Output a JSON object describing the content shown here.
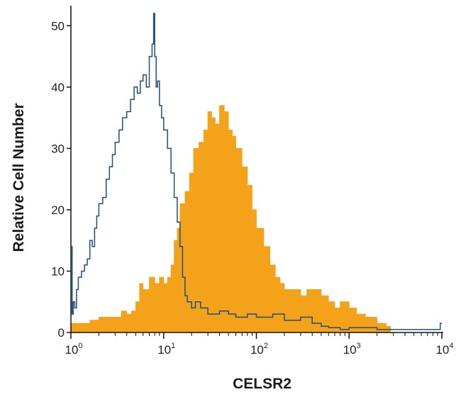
{
  "chart_data": {
    "type": "area",
    "xlabel": "CELSR2",
    "ylabel": "Relative Cell Number",
    "xscale": "log",
    "xlim": [
      1,
      10000
    ],
    "ylim": [
      0,
      52
    ],
    "xticks": [
      {
        "value": 1,
        "base": "10",
        "exp": "0"
      },
      {
        "value": 10,
        "base": "10",
        "exp": "1"
      },
      {
        "value": 100,
        "base": "10",
        "exp": "2"
      },
      {
        "value": 1000,
        "base": "10",
        "exp": "3"
      },
      {
        "value": 10000,
        "base": "10",
        "exp": "4"
      }
    ],
    "yticks": [
      0,
      10,
      20,
      30,
      40,
      50
    ],
    "grid": false,
    "series": [
      {
        "style": "filled",
        "color": "#f5a21b",
        "x": [
          1.0,
          1.3,
          1.6,
          2.0,
          2.5,
          3.0,
          3.5,
          4.0,
          4.5,
          5.0,
          5.5,
          6.0,
          7.0,
          8.0,
          9.0,
          10.0,
          11.0,
          12.0,
          13.0,
          14.0,
          15.0,
          17.0,
          19.0,
          21.0,
          24.0,
          27.0,
          30.0,
          33.0,
          36.0,
          40.0,
          45.0,
          50.0,
          55.0,
          60.0,
          70.0,
          80.0,
          90.0,
          100.0,
          120.0,
          140.0,
          160.0,
          180.0,
          200.0,
          250.0,
          300.0,
          350.0,
          400.0,
          500.0,
          600.0,
          700.0,
          800.0,
          1000.0,
          1200.0,
          1500.0,
          2000.0,
          2500.0,
          2800.0
        ],
        "y": [
          1.5,
          1.5,
          2.0,
          2.5,
          2.5,
          2.5,
          3.5,
          3.0,
          3.5,
          5.0,
          8.0,
          7.0,
          9.0,
          8.0,
          9.0,
          8.0,
          9.0,
          11.0,
          15.0,
          17.0,
          21.0,
          23.0,
          26.0,
          30.0,
          31.0,
          33.0,
          36.0,
          35.0,
          34.0,
          37.0,
          36.0,
          33.0,
          32.0,
          30.0,
          27.0,
          24.0,
          20.0,
          17.0,
          14.0,
          11.0,
          9.0,
          8.0,
          7.0,
          7.0,
          6.0,
          7.0,
          7.0,
          6.0,
          5.0,
          4.0,
          5.0,
          4.0,
          3.0,
          2.5,
          1.5,
          1.0,
          0.5
        ]
      },
      {
        "style": "outline",
        "color": "#1f4f7a",
        "x": [
          1.0,
          1.03,
          1.06,
          1.1,
          1.15,
          1.2,
          1.3,
          1.4,
          1.5,
          1.6,
          1.7,
          1.8,
          1.9,
          2.0,
          2.2,
          2.4,
          2.6,
          2.8,
          3.0,
          3.3,
          3.6,
          4.0,
          4.4,
          4.8,
          5.2,
          5.6,
          6.0,
          6.5,
          7.0,
          7.5,
          7.8,
          8.0,
          8.3,
          8.6,
          9.0,
          9.5,
          10.0,
          11.0,
          12.0,
          13.0,
          14.0,
          15.0,
          16.0,
          17.0,
          18.0,
          20.0,
          22.0,
          25.0,
          30.0,
          40.0,
          50.0,
          60.0,
          80.0,
          100.0,
          150.0,
          200.0,
          300.0,
          400.0,
          500.0,
          600.0,
          800.0,
          1000.0,
          2000.0,
          5000.0,
          9500.0,
          9600.0,
          10000.0
        ],
        "y": [
          14.0,
          3.0,
          5.0,
          4.0,
          7.0,
          9.0,
          10.0,
          11.0,
          12.0,
          15.0,
          14.0,
          17.0,
          19.0,
          21.0,
          22.0,
          25.0,
          27.0,
          29.0,
          31.0,
          33.0,
          35.0,
          36.0,
          38.0,
          40.0,
          39.0,
          41.0,
          42.0,
          40.0,
          45.0,
          47.0,
          52.0,
          45.0,
          40.0,
          41.0,
          37.0,
          35.0,
          33.0,
          30.0,
          26.0,
          22.0,
          18.0,
          14.0,
          9.0,
          6.0,
          5.0,
          4.0,
          5.0,
          4.0,
          3.0,
          3.5,
          3.0,
          2.5,
          3.0,
          2.5,
          3.0,
          2.0,
          2.5,
          1.5,
          1.0,
          0.8,
          0.5,
          0.8,
          0.5,
          0.5,
          0.5,
          1.5,
          1.5
        ]
      }
    ]
  }
}
